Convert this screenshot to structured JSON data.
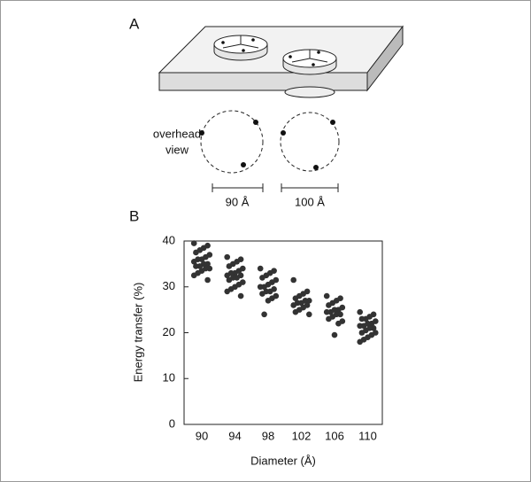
{
  "panel_a": {
    "label": "A",
    "overhead_label": [
      "overhead",
      "view"
    ],
    "scale_labels": [
      "90 Å",
      "100 Å"
    ]
  },
  "panel_b": {
    "label": "B"
  },
  "chart_data": {
    "type": "strip",
    "x_label": "Diameter (Å)",
    "y_label": "Energy transfer (%)",
    "categories": [
      "90",
      "94",
      "98",
      "102",
      "106",
      "110"
    ],
    "values": [
      [
        39.5,
        39,
        38.5,
        38,
        37.5,
        37,
        36.5,
        36,
        36,
        35.5,
        35,
        35,
        34.5,
        34.5,
        34,
        34,
        33.5,
        33,
        32.5,
        31.5
      ],
      [
        36.5,
        36,
        35.5,
        35,
        34.5,
        34,
        33.5,
        33,
        33,
        32.5,
        32.5,
        32,
        32,
        31.5,
        31,
        30.5,
        30,
        29.5,
        29,
        28
      ],
      [
        34,
        33.5,
        33,
        32.5,
        32,
        31.5,
        31,
        30.5,
        30,
        30,
        29.5,
        29,
        29,
        28.5,
        28,
        27.5,
        27,
        24
      ],
      [
        31.5,
        29,
        28.5,
        28,
        27.5,
        27,
        27,
        26.5,
        26.5,
        26,
        26,
        25.5,
        25,
        24.5,
        24
      ],
      [
        28,
        27.5,
        27,
        26.5,
        26,
        25.5,
        25,
        25,
        24.5,
        24.5,
        24,
        24,
        23.5,
        23,
        22.5,
        22,
        19.5
      ],
      [
        24.5,
        24,
        23.5,
        23,
        23,
        22.5,
        22,
        22,
        21.5,
        21.5,
        21,
        21,
        20.5,
        20,
        20,
        19.5,
        19,
        18.5,
        18
      ]
    ],
    "color": "#333333",
    "ylim": [
      0,
      40
    ],
    "yticks": [
      0,
      10,
      20,
      30,
      40
    ],
    "grid": false
  }
}
